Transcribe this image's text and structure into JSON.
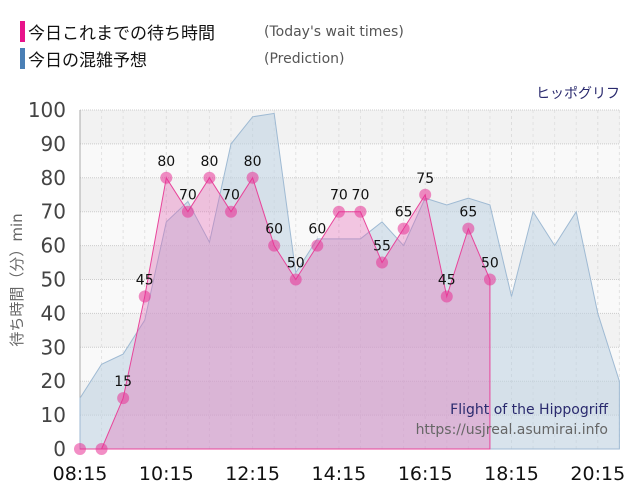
{
  "legend": {
    "actual": {
      "label": "今日これまでの待ち時間",
      "sub": "(Today's wait times)",
      "color": "#e8138a"
    },
    "prediction": {
      "label": "今日の混雑予想",
      "sub": "(Prediction)",
      "color": "#4a7fb5"
    }
  },
  "ride_name_jp": "ヒッポグリフ",
  "watermark": {
    "title": "Flight of the Hippogriff",
    "url": "https://usjreal.asumirai.info"
  },
  "chart_data": {
    "type": "area",
    "title": "",
    "xlabel": "",
    "ylabel": "待ち時間（分）min",
    "ylim": [
      0,
      100
    ],
    "yticks": [
      0,
      10,
      20,
      30,
      40,
      50,
      60,
      70,
      80,
      90,
      100
    ],
    "xticks": [
      "08:15",
      "10:15",
      "12:15",
      "14:15",
      "16:15",
      "18:15",
      "20:15"
    ],
    "grid": true,
    "series": [
      {
        "name": "今日これまでの待ち時間 (Today's wait times)",
        "x": [
          "08:15",
          "08:45",
          "09:15",
          "09:45",
          "10:15",
          "10:45",
          "11:15",
          "11:45",
          "12:15",
          "12:45",
          "13:15",
          "13:45",
          "14:15",
          "14:45",
          "15:15",
          "15:45",
          "16:15",
          "16:45",
          "17:15",
          "17:45"
        ],
        "values": [
          0,
          0,
          15,
          45,
          80,
          70,
          80,
          70,
          80,
          60,
          50,
          60,
          70,
          70,
          55,
          65,
          75,
          45,
          65,
          50
        ]
      },
      {
        "name": "今日の混雑予想 (Prediction)",
        "x": [
          "08:15",
          "08:45",
          "09:15",
          "09:45",
          "10:15",
          "10:45",
          "11:15",
          "11:45",
          "12:15",
          "12:45",
          "13:15",
          "13:45",
          "14:15",
          "14:45",
          "15:15",
          "15:45",
          "16:15",
          "16:45",
          "17:15",
          "17:45",
          "18:15",
          "18:45",
          "19:15",
          "19:45",
          "20:15",
          "20:45"
        ],
        "values": [
          15,
          25,
          28,
          38,
          67,
          73,
          61,
          90,
          98,
          99,
          52,
          62,
          62,
          62,
          67,
          60,
          74,
          72,
          74,
          72,
          45,
          70,
          60,
          70,
          40,
          20
        ]
      }
    ]
  }
}
